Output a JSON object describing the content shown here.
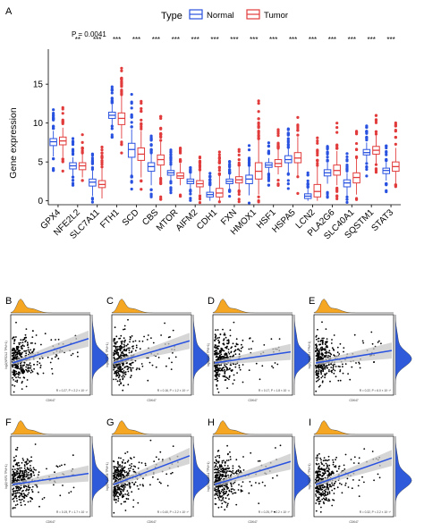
{
  "colors": {
    "normal": "#2952e0",
    "tumor": "#e23b3b",
    "orange": "#f5a623",
    "blue_density": "#2f5bdb",
    "band": "#c8c8c8"
  },
  "panelA": {
    "letter": "A",
    "legend": {
      "title": "Type",
      "normal": "Normal",
      "tumor": "Tumor"
    },
    "ylabel": "Gene expression",
    "yticks": [
      "0",
      "5",
      "10",
      "15"
    ],
    "pvalue_label": "P = 0.0041",
    "chart_data": {
      "type": "box",
      "ylim": [
        -0.5,
        19.5
      ],
      "categories": [
        "GPX4",
        "NFE2L2",
        "SLC7A11",
        "FTH1",
        "SCD",
        "CBS",
        "MTOR",
        "AIFM2",
        "CDH1",
        "FXN",
        "HMOX1",
        "HSF1",
        "HSPA5",
        "LCN2",
        "PLA2G6",
        "SLC40A1",
        "SQSTM1",
        "STAT3"
      ],
      "significance": [
        "",
        "**",
        "***",
        "***",
        "***",
        "***",
        "***",
        "***",
        "***",
        "***",
        "***",
        "***",
        "***",
        "***",
        "***",
        "***",
        "***",
        "***"
      ],
      "series": [
        {
          "name": "Normal",
          "medians": [
            7.6,
            4.5,
            2.4,
            11.0,
            6.6,
            4.4,
            3.6,
            2.5,
            0.8,
            2.5,
            2.8,
            4.6,
            5.3,
            0.6,
            3.6,
            2.3,
            6.2,
            3.9
          ],
          "q1": [
            7.1,
            4.1,
            1.9,
            10.6,
            5.6,
            3.8,
            3.3,
            2.2,
            0.5,
            2.2,
            2.2,
            4.3,
            4.9,
            0.3,
            3.2,
            1.8,
            5.9,
            3.5
          ],
          "q3": [
            8.0,
            4.9,
            2.8,
            11.4,
            7.4,
            4.9,
            3.9,
            2.8,
            1.1,
            2.8,
            3.3,
            4.9,
            5.8,
            0.9,
            4.0,
            2.7,
            6.6,
            4.2
          ],
          "lo": [
            5.7,
            3.2,
            0.6,
            9.7,
            3.3,
            2.0,
            2.6,
            1.5,
            0.0,
            1.5,
            0.7,
            3.6,
            3.6,
            0.0,
            2.2,
            0.6,
            5.0,
            2.6
          ],
          "hi": [
            9.0,
            5.6,
            3.9,
            12.4,
            9.2,
            6.0,
            4.5,
            3.5,
            1.9,
            3.4,
            4.4,
            5.5,
            6.7,
            1.6,
            4.9,
            3.6,
            7.5,
            5.0
          ]
        },
        {
          "name": "Tumor",
          "medians": [
            7.7,
            4.5,
            2.1,
            10.6,
            6.0,
            5.3,
            3.2,
            2.2,
            1.0,
            2.7,
            3.8,
            4.8,
            5.5,
            1.2,
            3.9,
            3.0,
            6.5,
            4.4
          ],
          "q1": [
            7.2,
            4.0,
            1.7,
            9.8,
            5.2,
            4.6,
            2.9,
            1.8,
            0.5,
            2.3,
            2.8,
            4.4,
            4.9,
            0.5,
            3.3,
            2.3,
            6.0,
            3.8
          ],
          "q3": [
            8.2,
            4.9,
            2.6,
            11.3,
            6.8,
            5.9,
            3.6,
            2.6,
            1.6,
            3.1,
            4.9,
            5.3,
            6.2,
            2.1,
            4.6,
            3.6,
            7.0,
            5.0
          ],
          "lo": [
            5.6,
            3.0,
            0.3,
            8.0,
            3.0,
            3.0,
            2.0,
            0.9,
            0.0,
            1.4,
            0.8,
            3.4,
            3.2,
            0.0,
            2.0,
            0.8,
            4.8,
            2.2
          ],
          "hi": [
            9.4,
            6.0,
            4.2,
            13.5,
            9.0,
            7.6,
            4.8,
            3.8,
            3.2,
            4.4,
            7.8,
            6.6,
            8.2,
            4.4,
            6.4,
            5.4,
            8.4,
            6.8
          ]
        }
      ]
    }
  },
  "scatter_panels": [
    {
      "letter": "B",
      "ylab": "log2(NFE2L2 TPM+1)",
      "xlab": "CDK47",
      "stats": "R = 0.27, P < 2.2 × 10⁻¹⁶"
    },
    {
      "letter": "C",
      "ylab": "log2(FTH1 TPM+1)",
      "xlab": "CDK47",
      "stats": "R = 0.16, P = 1.2 × 10⁻¹⁰"
    },
    {
      "letter": "D",
      "ylab": "log2(FXN TPM+1)",
      "xlab": "CDK47",
      "stats": "R = 0.17, P = 1.8 × 10⁻¹¹"
    },
    {
      "letter": "E",
      "ylab": "log2(HMOX1 TPM+1)",
      "xlab": "CDK47",
      "stats": "R = 0.22, P = 6.0 × 10⁻¹⁸"
    },
    {
      "letter": "F",
      "ylab": "log2(HSF1 TPM+1)",
      "xlab": "CDK47",
      "stats": "R = 0.19, P = 1.7 × 10⁻¹³"
    },
    {
      "letter": "G",
      "ylab": "log2(PLA2G6 TPM+1)",
      "xlab": "CDK47",
      "stats": "R = 0.40, P < 2.2 × 10⁻¹⁶"
    },
    {
      "letter": "H",
      "ylab": "log2(SLC40A1 TPM+1)",
      "xlab": "CDK47",
      "stats": "R = 0.25, P < 2.2 × 10⁻¹⁶"
    },
    {
      "letter": "I",
      "ylab": "log2(STAT3 TPM+1)",
      "xlab": "CDK47",
      "stats": "R = 0.32, P < 2.2 × 10⁻¹⁶"
    }
  ]
}
